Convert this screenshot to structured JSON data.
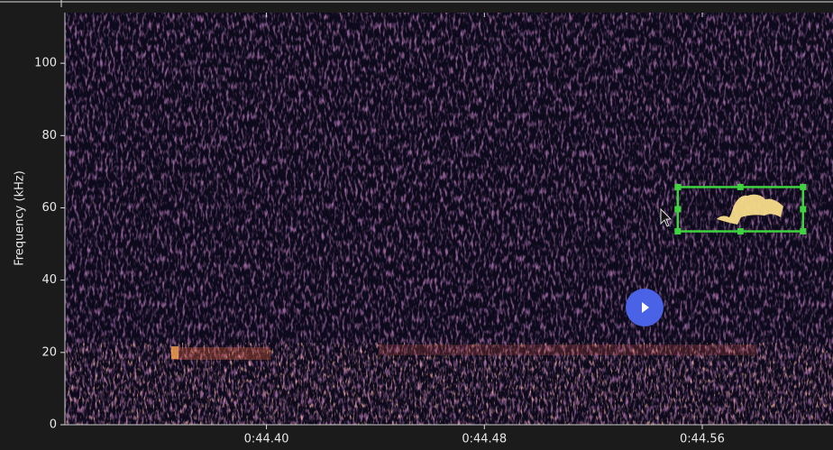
{
  "chart_data": {
    "type": "spectrogram",
    "ylabel": "Frequency (kHz)",
    "ylim": [
      0,
      114
    ],
    "yticks": [
      0,
      20,
      40,
      60,
      80,
      100
    ],
    "xlim": [
      44.326,
      44.608
    ],
    "xticks": [
      {
        "value": 44.4,
        "label": "0:44.40"
      },
      {
        "value": 44.48,
        "label": "0:44.48"
      },
      {
        "value": 44.56,
        "label": "0:44.56"
      }
    ],
    "selection": {
      "x": [
        44.551,
        44.597
      ],
      "y": [
        53.5,
        65.75
      ]
    }
  }
}
